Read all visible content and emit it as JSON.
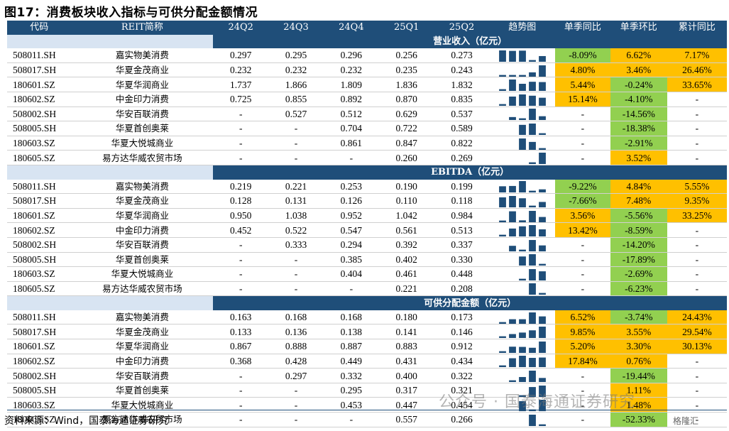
{
  "title": "图17：消费板块收入指标与可供分配金额情况",
  "headers": [
    "代码",
    "REIT简称",
    "24Q2",
    "24Q3",
    "24Q4",
    "25Q1",
    "25Q2",
    "趋势图",
    "单季同比",
    "单季环比",
    "累计同比"
  ],
  "sections": [
    {
      "label": "营业收入（亿元）",
      "rows": [
        {
          "code": "508011.SH",
          "name": "嘉实物美消费",
          "vals": [
            "0.297",
            "0.295",
            "0.296",
            "0.256",
            "0.273"
          ],
          "trend": [
            0.297,
            0.295,
            0.296,
            0.256,
            0.273
          ],
          "yoy": "-8.09%",
          "yoy_c": "green",
          "qoq": "6.62%",
          "qoq_c": "orange",
          "cum": "7.17%",
          "cum_c": "orange"
        },
        {
          "code": "508017.SH",
          "name": "华夏金茂商业",
          "vals": [
            "0.232",
            "0.232",
            "0.232",
            "0.235",
            "0.243"
          ],
          "trend": [
            0.232,
            0.232,
            0.232,
            0.235,
            0.243
          ],
          "yoy": "4.80%",
          "yoy_c": "orange",
          "qoq": "3.46%",
          "qoq_c": "orange",
          "cum": "26.46%",
          "cum_c": "orange"
        },
        {
          "code": "180601.SZ",
          "name": "华夏华润商业",
          "vals": [
            "1.737",
            "1.866",
            "1.809",
            "1.836",
            "1.832"
          ],
          "trend": [
            1.737,
            1.866,
            1.809,
            1.836,
            1.832
          ],
          "yoy": "5.44%",
          "yoy_c": "orange",
          "qoq": "-0.24%",
          "qoq_c": "green",
          "cum": "33.65%",
          "cum_c": "orange"
        },
        {
          "code": "180602.SZ",
          "name": "中金印力消费",
          "vals": [
            "0.725",
            "0.855",
            "0.892",
            "0.870",
            "0.835"
          ],
          "trend": [
            0.725,
            0.855,
            0.892,
            0.87,
            0.835
          ],
          "yoy": "15.14%",
          "yoy_c": "orange",
          "qoq": "-4.10%",
          "qoq_c": "green",
          "cum": "-",
          "cum_c": ""
        },
        {
          "code": "508002.SH",
          "name": "华安百联消费",
          "vals": [
            "-",
            "0.527",
            "0.512",
            "0.629",
            "0.537"
          ],
          "trend": [
            0.527,
            0.512,
            0.629,
            0.537
          ],
          "yoy": "-",
          "yoy_c": "",
          "qoq": "-14.56%",
          "qoq_c": "green",
          "cum": "-",
          "cum_c": ""
        },
        {
          "code": "508005.SH",
          "name": "华夏首创奥莱",
          "vals": [
            "-",
            "-",
            "0.704",
            "0.722",
            "0.589"
          ],
          "trend": [
            0.704,
            0.722,
            0.589
          ],
          "yoy": "-",
          "yoy_c": "",
          "qoq": "-18.38%",
          "qoq_c": "green",
          "cum": "-",
          "cum_c": ""
        },
        {
          "code": "180603.SZ",
          "name": "华夏大悦城商业",
          "vals": [
            "-",
            "-",
            "0.861",
            "0.847",
            "0.822"
          ],
          "trend": [
            0.861,
            0.847,
            0.822
          ],
          "yoy": "-",
          "yoy_c": "",
          "qoq": "-2.91%",
          "qoq_c": "green",
          "cum": "-",
          "cum_c": ""
        },
        {
          "code": "180605.SZ",
          "name": "易方达华威农贸市场",
          "vals": [
            "-",
            "-",
            "-",
            "0.260",
            "0.269"
          ],
          "trend": [
            0.26,
            0.269
          ],
          "yoy": "-",
          "yoy_c": "",
          "qoq": "3.52%",
          "qoq_c": "orange",
          "cum": "-",
          "cum_c": ""
        }
      ]
    },
    {
      "label": "EBITDA（亿元）",
      "rows": [
        {
          "code": "508011.SH",
          "name": "嘉实物美消费",
          "vals": [
            "0.219",
            "0.221",
            "0.253",
            "0.190",
            "0.199"
          ],
          "trend": [
            0.219,
            0.221,
            0.253,
            0.19,
            0.199
          ],
          "yoy": "-9.22%",
          "yoy_c": "green",
          "qoq": "4.84%",
          "qoq_c": "orange",
          "cum": "5.55%",
          "cum_c": "orange"
        },
        {
          "code": "508017.SH",
          "name": "华夏金茂商业",
          "vals": [
            "0.128",
            "0.131",
            "0.126",
            "0.110",
            "0.118"
          ],
          "trend": [
            0.128,
            0.131,
            0.126,
            0.11,
            0.118
          ],
          "yoy": "-7.66%",
          "yoy_c": "green",
          "qoq": "7.48%",
          "qoq_c": "orange",
          "cum": "9.35%",
          "cum_c": "orange"
        },
        {
          "code": "180601.SZ",
          "name": "华夏华润商业",
          "vals": [
            "0.950",
            "1.038",
            "0.952",
            "1.042",
            "0.984"
          ],
          "trend": [
            0.95,
            1.038,
            0.952,
            1.042,
            0.984
          ],
          "yoy": "3.56%",
          "yoy_c": "orange",
          "qoq": "-5.56%",
          "qoq_c": "green",
          "cum": "33.25%",
          "cum_c": "orange"
        },
        {
          "code": "180602.SZ",
          "name": "中金印力消费",
          "vals": [
            "0.452",
            "0.522",
            "0.547",
            "0.561",
            "0.513"
          ],
          "trend": [
            0.452,
            0.522,
            0.547,
            0.561,
            0.513
          ],
          "yoy": "13.42%",
          "yoy_c": "orange",
          "qoq": "-8.59%",
          "qoq_c": "green",
          "cum": "-",
          "cum_c": ""
        },
        {
          "code": "508002.SH",
          "name": "华安百联消费",
          "vals": [
            "-",
            "0.333",
            "0.294",
            "0.392",
            "0.337"
          ],
          "trend": [
            0.333,
            0.294,
            0.392,
            0.337
          ],
          "yoy": "-",
          "yoy_c": "",
          "qoq": "-14.20%",
          "qoq_c": "green",
          "cum": "-",
          "cum_c": ""
        },
        {
          "code": "508005.SH",
          "name": "华夏首创奥莱",
          "vals": [
            "-",
            "-",
            "0.385",
            "0.402",
            "0.330"
          ],
          "trend": [
            0.385,
            0.402,
            0.33
          ],
          "yoy": "-",
          "yoy_c": "",
          "qoq": "-17.89%",
          "qoq_c": "green",
          "cum": "-",
          "cum_c": ""
        },
        {
          "code": "180603.SZ",
          "name": "华夏大悦城商业",
          "vals": [
            "-",
            "-",
            "0.404",
            "0.461",
            "0.448"
          ],
          "trend": [
            0.404,
            0.461,
            0.448
          ],
          "yoy": "-",
          "yoy_c": "",
          "qoq": "-2.69%",
          "qoq_c": "green",
          "cum": "-",
          "cum_c": ""
        },
        {
          "code": "180605.SZ",
          "name": "易方达华威农贸市场",
          "vals": [
            "-",
            "-",
            "-",
            "0.221",
            "0.208"
          ],
          "trend": [
            0.221,
            0.208
          ],
          "yoy": "-",
          "yoy_c": "",
          "qoq": "-6.23%",
          "qoq_c": "green",
          "cum": "-",
          "cum_c": ""
        }
      ]
    },
    {
      "label": "可供分配金额（亿元）",
      "rows": [
        {
          "code": "508011.SH",
          "name": "嘉实物美消费",
          "vals": [
            "0.163",
            "0.168",
            "0.168",
            "0.180",
            "0.173"
          ],
          "trend": [
            0.163,
            0.168,
            0.168,
            0.18,
            0.173
          ],
          "yoy": "6.52%",
          "yoy_c": "orange",
          "qoq": "-3.74%",
          "qoq_c": "green",
          "cum": "24.43%",
          "cum_c": "orange"
        },
        {
          "code": "508017.SH",
          "name": "华夏金茂商业",
          "vals": [
            "0.133",
            "0.136",
            "0.138",
            "0.141",
            "0.146"
          ],
          "trend": [
            0.133,
            0.136,
            0.138,
            0.141,
            0.146
          ],
          "yoy": "9.85%",
          "yoy_c": "orange",
          "qoq": "3.55%",
          "qoq_c": "orange",
          "cum": "29.54%",
          "cum_c": "orange"
        },
        {
          "code": "180601.SZ",
          "name": "华夏华润商业",
          "vals": [
            "0.867",
            "0.888",
            "0.887",
            "0.883",
            "0.912"
          ],
          "trend": [
            0.867,
            0.888,
            0.887,
            0.883,
            0.912
          ],
          "yoy": "5.20%",
          "yoy_c": "orange",
          "qoq": "3.30%",
          "qoq_c": "orange",
          "cum": "30.13%",
          "cum_c": "orange"
        },
        {
          "code": "180602.SZ",
          "name": "中金印力消费",
          "vals": [
            "0.368",
            "0.428",
            "0.449",
            "0.431",
            "0.434"
          ],
          "trend": [
            0.368,
            0.428,
            0.449,
            0.431,
            0.434
          ],
          "yoy": "17.84%",
          "yoy_c": "orange",
          "qoq": "0.76%",
          "qoq_c": "orange",
          "cum": "-",
          "cum_c": ""
        },
        {
          "code": "508002.SH",
          "name": "华安百联消费",
          "vals": [
            "-",
            "0.297",
            "0.332",
            "0.400",
            "0.322"
          ],
          "trend": [
            0.297,
            0.332,
            0.4,
            0.322
          ],
          "yoy": "-",
          "yoy_c": "",
          "qoq": "-19.44%",
          "qoq_c": "green",
          "cum": "-",
          "cum_c": ""
        },
        {
          "code": "508005.SH",
          "name": "华夏首创奥莱",
          "vals": [
            "-",
            "-",
            "0.295",
            "0.317",
            "0.321"
          ],
          "trend": [
            0.295,
            0.317,
            0.321
          ],
          "yoy": "-",
          "yoy_c": "",
          "qoq": "1.11%",
          "qoq_c": "orange",
          "cum": "-",
          "cum_c": ""
        },
        {
          "code": "180603.SZ",
          "name": "华夏大悦城商业",
          "vals": [
            "-",
            "-",
            "0.453",
            "0.447",
            "0.454"
          ],
          "trend": [
            0.453,
            0.447,
            0.454
          ],
          "yoy": "-",
          "yoy_c": "",
          "qoq": "1.48%",
          "qoq_c": "orange",
          "cum": "-",
          "cum_c": ""
        },
        {
          "code": "180605.SZ",
          "name": "易方达华威农贸市场",
          "vals": [
            "-",
            "-",
            "-",
            "0.557",
            "0.266"
          ],
          "trend": [
            0.557,
            0.266
          ],
          "yoy": "-",
          "yoy_c": "",
          "qoq": "-52.33%",
          "qoq_c": "green",
          "cum": "-",
          "cum_c": ""
        }
      ]
    }
  ],
  "source": "资料来源：Wind，国泰海通证券研究",
  "watermark": "公众号 · 国泰海通证券研究",
  "watermark_logo": "格隆汇",
  "colors": {
    "header": "#1f4e79",
    "green": "#92d050",
    "orange": "#ffc000",
    "spark": "#1f4e79"
  }
}
